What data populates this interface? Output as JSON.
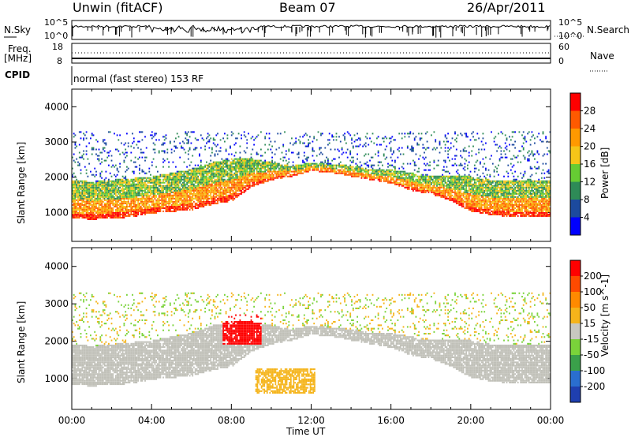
{
  "header": {
    "station": "Unwin (fitACF)",
    "beam": "Beam 07",
    "date": "26/Apr/2011"
  },
  "strip": {
    "nsky_label": "N.Sky",
    "nsearch_label": "N.Search",
    "freq_label": "Freq.",
    "freq_unit": "[MHz]",
    "nave_label": "Nave",
    "cpid_label": "CPID",
    "program": "normal (fast stereo) 153 RF",
    "noise_ticks_left": [
      "10^5",
      "10^0"
    ],
    "noise_ticks_right": [
      "10^5",
      "10^0"
    ],
    "freq_ticks": [
      "18",
      "8"
    ],
    "nave_ticks": [
      "60",
      "0"
    ]
  },
  "colors": {
    "power": [
      "#0000ff",
      "#1c4a9e",
      "#2e8b57",
      "#66cc33",
      "#f5c518",
      "#ff9900",
      "#ff5a00",
      "#ff0000"
    ],
    "velocity": [
      "#1f3fb0",
      "#2a6ecf",
      "#3aa04a",
      "#7ad33a",
      "#c8c8c0",
      "#f5b41a",
      "#ff8a00",
      "#ff4a00",
      "#ff0000"
    ],
    "ground_scatter": "#c0c0b8"
  },
  "chart_data": [
    {
      "type": "heatmap",
      "title": "Power",
      "ylabel": "Slant Range [km]",
      "colorbar_label": "Power [dB]",
      "colorbar_ticks": [
        "28",
        "24",
        "20",
        "16",
        "12",
        "8",
        "4"
      ],
      "y_ticks": [
        "4000",
        "3000",
        "2000",
        "1000"
      ],
      "x_ticks": [
        "00:00",
        "04:00",
        "08:00",
        "12:00",
        "16:00",
        "20:00",
        "00:00"
      ],
      "xlabel": "Time UT",
      "xlim": [
        0,
        24
      ],
      "ylim": [
        180,
        4500
      ],
      "scatter_bands": [
        {
          "t": [
            0,
            1,
            2,
            3,
            4,
            5,
            6,
            7,
            8,
            9,
            10,
            11,
            12,
            13,
            14,
            15,
            16,
            17,
            18,
            19,
            20,
            21,
            22,
            23,
            24
          ],
          "low": [
            800,
            780,
            800,
            850,
            950,
            1000,
            1050,
            1200,
            1300,
            1700,
            1900,
            2000,
            2150,
            2100,
            2000,
            1900,
            1800,
            1600,
            1500,
            1300,
            1000,
            900,
            850,
            850,
            850
          ],
          "high": [
            1900,
            1850,
            1900,
            1950,
            2000,
            2100,
            2200,
            2400,
            2500,
            2500,
            2400,
            2300,
            2400,
            2350,
            2300,
            2200,
            2200,
            2100,
            2000,
            2000,
            2000,
            1900,
            1900,
            1900,
            1900
          ]
        }
      ]
    },
    {
      "type": "heatmap",
      "title": "Velocity",
      "ylabel": "Slant Range [km]",
      "colorbar_label": "Velocity [m s^-1]",
      "colorbar_ticks": [
        "200",
        "100",
        "50",
        "15",
        "-15",
        "-50",
        "-100",
        "-200"
      ],
      "y_ticks": [
        "4000",
        "3000",
        "2000",
        "1000"
      ],
      "x_ticks": [
        "00:00",
        "04:00",
        "08:00",
        "12:00",
        "16:00",
        "20:00",
        "00:00"
      ],
      "xlabel": "Time UT",
      "xlim": [
        0,
        24
      ],
      "ylim": [
        180,
        4500
      ]
    }
  ]
}
